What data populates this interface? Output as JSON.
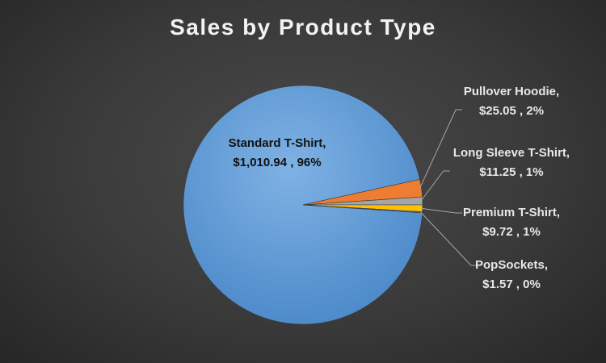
{
  "chart_data": {
    "type": "pie",
    "title": "Sales by Product Type",
    "slices": [
      {
        "name": "Standard T-Shirt",
        "value": 1010.94,
        "value_label": "$1,010.94",
        "percent_label": "96%",
        "color": "#5b9bd5"
      },
      {
        "name": "Pullover Hoodie",
        "value": 25.05,
        "value_label": "$25.05",
        "percent_label": "2%",
        "color": "#ed7d31"
      },
      {
        "name": "Long Sleeve T-Shirt",
        "value": 11.25,
        "value_label": "$11.25",
        "percent_label": "1%",
        "color": "#a5a5a5"
      },
      {
        "name": "Premium T-Shirt",
        "value": 9.72,
        "value_label": "$9.72",
        "percent_label": "1%",
        "color": "#ffc000"
      },
      {
        "name": "PopSockets",
        "value": 1.57,
        "value_label": "$1.57",
        "percent_label": "0%",
        "color": "#4472c4"
      }
    ],
    "legend": "none",
    "label_separator": " , "
  }
}
